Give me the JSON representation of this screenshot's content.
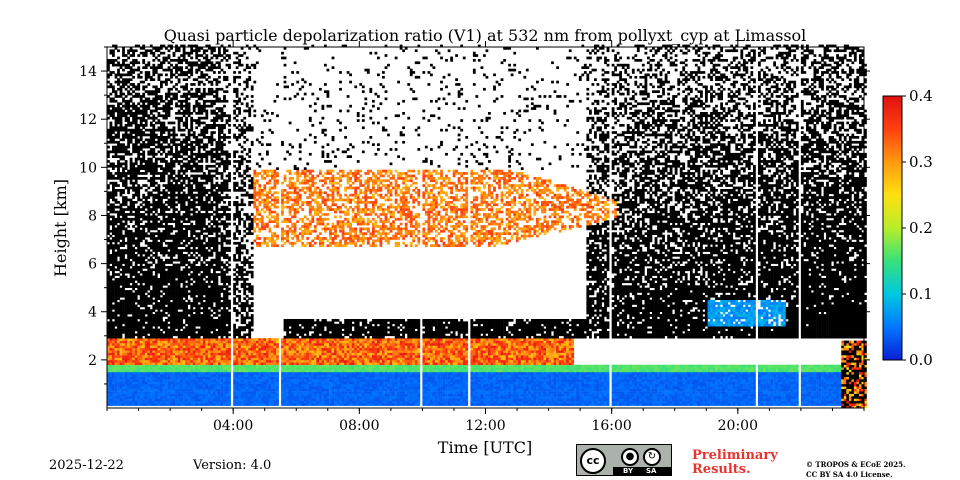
{
  "chart_data": {
    "type": "heatmap",
    "title": "Quasi particle depolarization ratio (V1) at 532 nm from pollyxt_cyp at Limassol",
    "xlabel": "Time [UTC]",
    "ylabel": "Height [km]",
    "xlim_hours": [
      0,
      24
    ],
    "ylim_km": [
      0,
      15
    ],
    "x_ticks": [
      {
        "value": 4,
        "label": "04:00"
      },
      {
        "value": 8,
        "label": "08:00"
      },
      {
        "value": 12,
        "label": "12:00"
      },
      {
        "value": 16,
        "label": "16:00"
      },
      {
        "value": 20,
        "label": "20:00"
      }
    ],
    "y_ticks": [
      {
        "value": 2,
        "label": "2"
      },
      {
        "value": 4,
        "label": "4"
      },
      {
        "value": 6,
        "label": "6"
      },
      {
        "value": 8,
        "label": "8"
      },
      {
        "value": 10,
        "label": "10"
      },
      {
        "value": 12,
        "label": "12"
      },
      {
        "value": 14,
        "label": "14"
      }
    ],
    "colorbar": {
      "range": [
        0.0,
        0.4
      ],
      "ticks": [
        {
          "value": 0.0,
          "label": "0.0"
        },
        {
          "value": 0.1,
          "label": "0.1"
        },
        {
          "value": 0.2,
          "label": "0.2"
        },
        {
          "value": 0.3,
          "label": "0.3"
        },
        {
          "value": 0.4,
          "label": "0.4"
        }
      ],
      "colors": [
        "#0a1fd6",
        "#0077ff",
        "#00c8e0",
        "#38e07a",
        "#b8ee2a",
        "#ffe010",
        "#ff9a10",
        "#ff4010",
        "#e01010"
      ]
    },
    "features": [
      {
        "name": "boundary-layer",
        "from_h": 0,
        "to_h": 23.3,
        "bottom_km": 0.1,
        "top_km": 1.8,
        "value": 0.03
      },
      {
        "name": "dust-layer",
        "from_h": 0,
        "to_h": 14.8,
        "bottom_km": 1.8,
        "top_km": 2.9,
        "value": 0.33
      },
      {
        "name": "cirrus",
        "from_h": 4.6,
        "to_h": 16.1,
        "bottom_km": 6.6,
        "top_km": 9.8,
        "value": 0.32
      },
      {
        "name": "aerosol-patch-evening",
        "from_h": 19.0,
        "to_h": 21.5,
        "bottom_km": 3.4,
        "top_km": 4.5,
        "value": 0.07
      },
      {
        "name": "noise-night",
        "from_h": 0,
        "to_h": 4.6,
        "bottom_km": 2.9,
        "top_km": 15,
        "value": null
      },
      {
        "name": "noise-evening",
        "from_h": 15.2,
        "to_h": 24,
        "bottom_km": 2.9,
        "top_km": 15,
        "value": null
      }
    ],
    "data_gaps_hours": [
      3.95,
      5.45,
      9.9,
      11.45,
      15.95,
      20.55,
      21.9
    ]
  },
  "footer": {
    "date": "2025-12-22",
    "version": "Version: 4.0",
    "license_badge": {
      "cc": "cc",
      "by": "BY",
      "sa": "SA",
      "by_icon": "person-icon",
      "sa_icon": "share-alike-icon"
    },
    "preliminary_line1": "Preliminary",
    "preliminary_line2": "Results.",
    "copyright_line1": "© TROPOS & ECoE 2025.",
    "copyright_line2": "CC BY SA 4.0 License."
  }
}
